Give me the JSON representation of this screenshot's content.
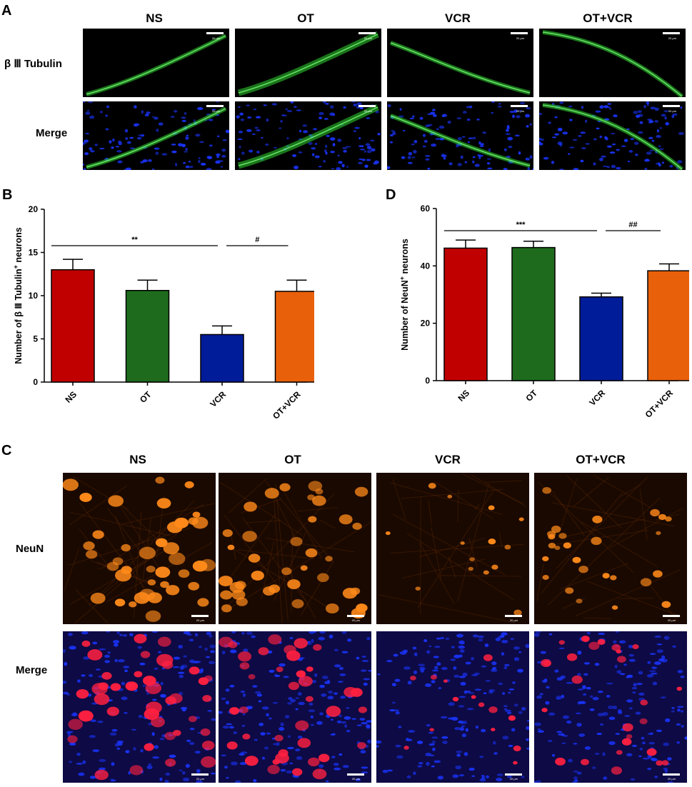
{
  "panel_a": {
    "label": "A",
    "columns": [
      "NS",
      "OT",
      "VCR",
      "OT+VCR"
    ],
    "rows": [
      "β Ⅲ Tubulin",
      "Merge"
    ],
    "scale_label": "20 μm"
  },
  "panel_c": {
    "label": "C",
    "columns": [
      "NS",
      "OT",
      "VCR",
      "OT+VCR"
    ],
    "rows": [
      "NeuN",
      "Merge"
    ],
    "scale_label": "20 μm"
  },
  "colors": {
    "NS": "#c00000",
    "OT": "#1e6b1e",
    "VCR": "#001c99",
    "OT+VCR": "#e8600a",
    "tubulin_green": "#2fd62f",
    "dapi_blue": "#1a35ff",
    "neun_orange": "#ff8a1a",
    "merge_red": "#ff2040"
  },
  "chart_data": [
    {
      "panel": "B",
      "type": "bar",
      "categories": [
        "NS",
        "OT",
        "VCR",
        "OT+VCR"
      ],
      "values": [
        13.0,
        10.6,
        5.5,
        10.5
      ],
      "errors": [
        1.2,
        1.2,
        1.0,
        1.3
      ],
      "ylabel_pre": "Number of β Ⅲ Tubulin",
      "ylabel_sup": "+",
      "ylabel_post": " neurons",
      "ylim": [
        0,
        20
      ],
      "yticks": [
        0,
        5,
        10,
        15,
        20
      ],
      "significance": [
        {
          "from": 0,
          "to": 2,
          "label": "**"
        },
        {
          "from": 2,
          "to": 3,
          "label": "#"
        }
      ]
    },
    {
      "panel": "D",
      "type": "bar",
      "categories": [
        "NS",
        "OT",
        "VCR",
        "OT+VCR"
      ],
      "values": [
        46.2,
        46.4,
        29.2,
        38.3
      ],
      "errors": [
        2.8,
        2.2,
        1.3,
        2.4
      ],
      "ylabel_pre": "Number of NeuN",
      "ylabel_sup": "+",
      "ylabel_post": " neurons",
      "ylim": [
        0,
        60
      ],
      "yticks": [
        0,
        20,
        40,
        60
      ],
      "significance": [
        {
          "from": 0,
          "to": 2,
          "label": "***"
        },
        {
          "from": 2,
          "to": 3,
          "label": "##"
        }
      ]
    }
  ]
}
